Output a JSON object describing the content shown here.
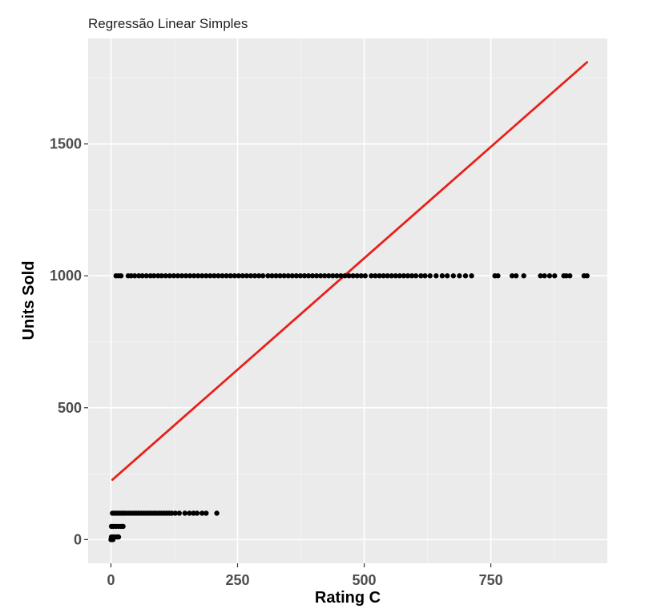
{
  "chart_data": {
    "type": "scatter",
    "title": "Regressão Linear Simples",
    "xlabel": "Rating C",
    "ylabel": "Units Sold",
    "xlim": [
      -45,
      980
    ],
    "ylim": [
      -90,
      1900
    ],
    "x_ticks": [
      0,
      250,
      500,
      750
    ],
    "y_ticks": [
      0,
      500,
      1000,
      1500
    ],
    "grid": true,
    "background": "#ebebeb",
    "point_color": "#000000",
    "line_color": "#e8201b",
    "series": [
      {
        "type": "scatter",
        "points": [
          [
            10,
            1000
          ],
          [
            15,
            1000
          ],
          [
            20,
            1000
          ],
          [
            34,
            1000
          ],
          [
            40,
            1000
          ],
          [
            47,
            1000
          ],
          [
            55,
            1000
          ],
          [
            62,
            1000
          ],
          [
            70,
            1000
          ],
          [
            78,
            1000
          ],
          [
            85,
            1000
          ],
          [
            93,
            1000
          ],
          [
            100,
            1000
          ],
          [
            108,
            1000
          ],
          [
            116,
            1000
          ],
          [
            124,
            1000
          ],
          [
            132,
            1000
          ],
          [
            140,
            1000
          ],
          [
            148,
            1000
          ],
          [
            156,
            1000
          ],
          [
            164,
            1000
          ],
          [
            172,
            1000
          ],
          [
            180,
            1000
          ],
          [
            188,
            1000
          ],
          [
            196,
            1000
          ],
          [
            204,
            1000
          ],
          [
            212,
            1000
          ],
          [
            220,
            1000
          ],
          [
            228,
            1000
          ],
          [
            236,
            1000
          ],
          [
            244,
            1000
          ],
          [
            252,
            1000
          ],
          [
            260,
            1000
          ],
          [
            268,
            1000
          ],
          [
            276,
            1000
          ],
          [
            284,
            1000
          ],
          [
            292,
            1000
          ],
          [
            300,
            1000
          ],
          [
            310,
            1000
          ],
          [
            318,
            1000
          ],
          [
            326,
            1000
          ],
          [
            334,
            1000
          ],
          [
            342,
            1000
          ],
          [
            350,
            1000
          ],
          [
            358,
            1000
          ],
          [
            366,
            1000
          ],
          [
            374,
            1000
          ],
          [
            382,
            1000
          ],
          [
            390,
            1000
          ],
          [
            398,
            1000
          ],
          [
            406,
            1000
          ],
          [
            414,
            1000
          ],
          [
            422,
            1000
          ],
          [
            430,
            1000
          ],
          [
            438,
            1000
          ],
          [
            446,
            1000
          ],
          [
            454,
            1000
          ],
          [
            462,
            1000
          ],
          [
            470,
            1000
          ],
          [
            478,
            1000
          ],
          [
            486,
            1000
          ],
          [
            494,
            1000
          ],
          [
            502,
            1000
          ],
          [
            514,
            1000
          ],
          [
            522,
            1000
          ],
          [
            530,
            1000
          ],
          [
            538,
            1000
          ],
          [
            546,
            1000
          ],
          [
            554,
            1000
          ],
          [
            562,
            1000
          ],
          [
            570,
            1000
          ],
          [
            578,
            1000
          ],
          [
            586,
            1000
          ],
          [
            594,
            1000
          ],
          [
            602,
            1000
          ],
          [
            612,
            1000
          ],
          [
            620,
            1000
          ],
          [
            630,
            1000
          ],
          [
            642,
            1000
          ],
          [
            654,
            1000
          ],
          [
            664,
            1000
          ],
          [
            676,
            1000
          ],
          [
            688,
            1000
          ],
          [
            700,
            1000
          ],
          [
            712,
            1000
          ],
          [
            758,
            1000
          ],
          [
            764,
            1000
          ],
          [
            792,
            1000
          ],
          [
            800,
            1000
          ],
          [
            815,
            1000
          ],
          [
            848,
            1000
          ],
          [
            856,
            1000
          ],
          [
            866,
            1000
          ],
          [
            876,
            1000
          ],
          [
            894,
            1000
          ],
          [
            899,
            1000
          ],
          [
            906,
            1000
          ],
          [
            934,
            1000
          ],
          [
            940,
            1000
          ],
          [
            3,
            100
          ],
          [
            6,
            100
          ],
          [
            10,
            100
          ],
          [
            14,
            100
          ],
          [
            18,
            100
          ],
          [
            22,
            100
          ],
          [
            26,
            100
          ],
          [
            30,
            100
          ],
          [
            35,
            100
          ],
          [
            40,
            100
          ],
          [
            45,
            100
          ],
          [
            50,
            100
          ],
          [
            55,
            100
          ],
          [
            60,
            100
          ],
          [
            65,
            100
          ],
          [
            70,
            100
          ],
          [
            75,
            100
          ],
          [
            80,
            100
          ],
          [
            85,
            100
          ],
          [
            90,
            100
          ],
          [
            95,
            100
          ],
          [
            100,
            100
          ],
          [
            105,
            100
          ],
          [
            110,
            100
          ],
          [
            115,
            100
          ],
          [
            120,
            100
          ],
          [
            127,
            100
          ],
          [
            135,
            100
          ],
          [
            146,
            100
          ],
          [
            155,
            100
          ],
          [
            163,
            100
          ],
          [
            170,
            100
          ],
          [
            180,
            100
          ],
          [
            188,
            100
          ],
          [
            209,
            100
          ],
          [
            1,
            50
          ],
          [
            5,
            50
          ],
          [
            10,
            50
          ],
          [
            15,
            50
          ],
          [
            20,
            50
          ],
          [
            24,
            50
          ],
          [
            1,
            10
          ],
          [
            4,
            10
          ],
          [
            8,
            10
          ],
          [
            12,
            10
          ],
          [
            15,
            10
          ],
          [
            0,
            0
          ],
          [
            2,
            0
          ],
          [
            4,
            0
          ]
        ]
      },
      {
        "type": "line",
        "points": [
          [
            3,
            227
          ],
          [
            940,
            1810
          ]
        ]
      }
    ]
  }
}
